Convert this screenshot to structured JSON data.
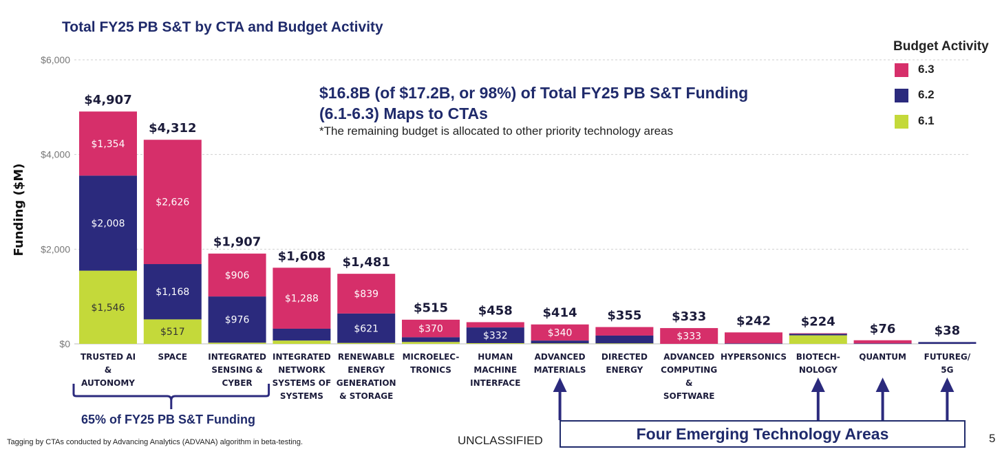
{
  "title": "Total FY25 PB S&T by CTA and Budget Activity",
  "headline_line1": "$16.8B (of $17.2B, or 98%) of Total FY25 PB S&T Funding",
  "headline_line2": "(6.1-6.3) Maps to CTAs",
  "footnote": "*The remaining budget is allocated to other priority technology areas",
  "legend": {
    "title": "Budget Activity",
    "items": [
      {
        "label": "6.3",
        "color": "#d62f6a"
      },
      {
        "label": "6.2",
        "color": "#2b2a7d"
      },
      {
        "label": "6.1",
        "color": "#c4d93a"
      }
    ]
  },
  "brace_note": "65% of FY25 PB S&T Funding",
  "emerging_note": "Four Emerging Technology Areas",
  "tagging_note": "Tagging by CTAs conducted by Advancing Analytics (ADVANA) algorithm in beta-testing.",
  "classification": "UNCLASSIFIED",
  "page_number": "5",
  "chart_data": {
    "type": "bar",
    "stacked": true,
    "ylabel": "Funding ($M)",
    "ylim": [
      0,
      6000
    ],
    "yticks": [
      "$0",
      "$2,000",
      "$4,000",
      "$6,000"
    ],
    "ytick_values": [
      0,
      2000,
      4000,
      6000
    ],
    "grid": true,
    "legend_position": "top-right",
    "categories": [
      [
        "TRUSTED AI",
        "&",
        "AUTONOMY"
      ],
      [
        "SPACE"
      ],
      [
        "INTEGRATED",
        "SENSING &",
        "CYBER"
      ],
      [
        "INTEGRATED",
        "NETWORK",
        "SYSTEMS OF",
        "SYSTEMS"
      ],
      [
        "RENEWABLE",
        "ENERGY",
        "GENERATION",
        "& STORAGE"
      ],
      [
        "MICROELEC-",
        "TRONICS"
      ],
      [
        "HUMAN",
        "MACHINE",
        "INTERFACE"
      ],
      [
        "ADVANCED",
        "MATERIALS"
      ],
      [
        "DIRECTED",
        "ENERGY"
      ],
      [
        "ADVANCED",
        "COMPUTING",
        "&",
        "SOFTWARE"
      ],
      [
        "HYPERSONICS"
      ],
      [
        "BIOTECH-",
        "NOLOGY"
      ],
      [
        "QUANTUM"
      ],
      [
        "FUTUREG/",
        "5G"
      ]
    ],
    "totals": [
      "$4,907",
      "$4,312",
      "$1,907",
      "$1,608",
      "$1,481",
      "$515",
      "$458",
      "$414",
      "$355",
      "$333",
      "$242",
      "$224",
      "$76",
      "$38"
    ],
    "total_values": [
      4907,
      4312,
      1907,
      1608,
      1481,
      515,
      458,
      414,
      355,
      333,
      242,
      224,
      76,
      38
    ],
    "series": [
      {
        "name": "6.1",
        "color": "#c4d93a",
        "values": [
          1546,
          517,
          25,
          70,
          20,
          40,
          15,
          10,
          10,
          0,
          0,
          180,
          0,
          0
        ],
        "labels": [
          "$1,546",
          "$517",
          "",
          "",
          "",
          "",
          "",
          "",
          "",
          "",
          "",
          "",
          "",
          ""
        ]
      },
      {
        "name": "6.2",
        "color": "#2b2a7d",
        "values": [
          2008,
          1168,
          976,
          250,
          621,
          100,
          332,
          60,
          165,
          0,
          10,
          34,
          10,
          38
        ],
        "labels": [
          "$2,008",
          "$1,168",
          "$976",
          "",
          "$621",
          "",
          "$332",
          "",
          "",
          "",
          "",
          "",
          "",
          ""
        ]
      },
      {
        "name": "6.3",
        "color": "#d62f6a",
        "values": [
          1354,
          2626,
          906,
          1288,
          839,
          370,
          111,
          340,
          180,
          333,
          232,
          10,
          66,
          0
        ],
        "labels": [
          "$1,354",
          "$2,626",
          "$906",
          "$1,288",
          "$839",
          "$370",
          "",
          "$340",
          "",
          "$333",
          "",
          "",
          "",
          ""
        ]
      }
    ],
    "arrows_to": [
      7,
      11,
      12,
      13
    ],
    "brace_span": [
      0,
      2
    ]
  }
}
